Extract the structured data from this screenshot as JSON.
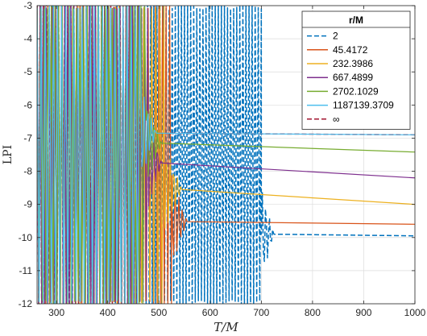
{
  "chart_data": {
    "type": "line",
    "title": "",
    "xlabel": "T/M",
    "ylabel": "LPI",
    "xlim": [
      262,
      1000
    ],
    "ylim": [
      -12,
      -3
    ],
    "x_ticks": [
      300,
      400,
      500,
      600,
      700,
      800,
      900,
      1000
    ],
    "x_tick_labels": [
      "300",
      "400",
      "500",
      "600",
      "700",
      "800",
      "900",
      "1000"
    ],
    "y_ticks": [
      -12,
      -11,
      -10,
      -9,
      -8,
      -7,
      -6,
      -5,
      -4,
      -3
    ],
    "y_tick_labels": [
      "-12",
      "-11",
      "-10",
      "-9",
      "-8",
      "-7",
      "-6",
      "-5",
      "-4",
      "-3"
    ],
    "grid": true,
    "legend_title": "r/M",
    "legend_position": "top-right",
    "series": [
      {
        "name": "2",
        "color": "#0072BD",
        "dash": "dashed",
        "final_value": -9.95,
        "oscillation_end": 700,
        "band": [
          -12,
          -3
        ]
      },
      {
        "name": "45.4172",
        "color": "#D95319",
        "dash": "solid",
        "final_value": -9.6,
        "oscillation_end": 525,
        "band": [
          -12,
          -3
        ]
      },
      {
        "name": "232.3986",
        "color": "#EDB120",
        "dash": "solid",
        "final_value": -9.0,
        "oscillation_end": 510,
        "band": [
          -12,
          -3
        ]
      },
      {
        "name": "667.4899",
        "color": "#7E2F8E",
        "dash": "solid",
        "final_value": -8.2,
        "oscillation_end": 480,
        "band": [
          -12,
          -3
        ]
      },
      {
        "name": "2702.1029",
        "color": "#77AC30",
        "dash": "solid",
        "final_value": -7.42,
        "oscillation_end": 475,
        "band": [
          -12,
          -3
        ]
      },
      {
        "name": "1187139.3709",
        "color": "#4DBEEE",
        "dash": "solid",
        "final_value": -6.9,
        "oscillation_end": 465,
        "band": [
          -12,
          -3
        ]
      },
      {
        "name": "∞",
        "color": "#A2142F",
        "dash": "dashed",
        "final_value": -6.9,
        "oscillation_end": 460,
        "band": [
          -12,
          -3
        ]
      }
    ],
    "settled_start": {
      "2": [
        700,
        -9.9
      ],
      "45.4172": [
        530,
        -9.52
      ],
      "232.3986": [
        520,
        -8.55
      ],
      "667.4899": [
        480,
        -7.75
      ],
      "2702.1029": [
        480,
        -7.15
      ],
      "1187139.3709": [
        470,
        -6.85
      ],
      "∞": [
        470,
        -6.85
      ]
    }
  }
}
